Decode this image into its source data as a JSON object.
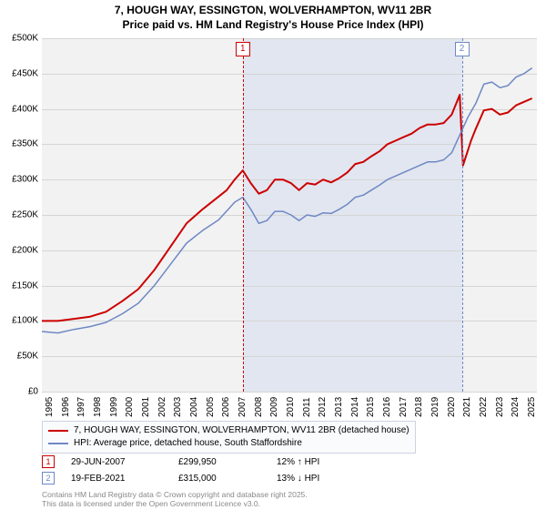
{
  "title": {
    "line1": "7, HOUGH WAY, ESSINGTON, WOLVERHAMPTON, WV11 2BR",
    "line2": "Price paid vs. HM Land Registry's House Price Index (HPI)",
    "fontsize": 12
  },
  "chart": {
    "type": "line",
    "background_color": "#f2f2f2",
    "shade_color": "#e2e6f0",
    "grid_color": "#d5d5d5",
    "x_start_year": 1995,
    "x_end_year": 2025.8,
    "x_ticks": [
      1995,
      1996,
      1997,
      1998,
      1999,
      2000,
      2001,
      2002,
      2003,
      2004,
      2005,
      2006,
      2007,
      2008,
      2009,
      2010,
      2011,
      2012,
      2013,
      2014,
      2015,
      2016,
      2017,
      2018,
      2019,
      2020,
      2021,
      2022,
      2023,
      2024,
      2025
    ],
    "y_min": 0,
    "y_max": 500000,
    "y_ticks": [
      0,
      50000,
      100000,
      150000,
      200000,
      250000,
      300000,
      350000,
      400000,
      450000,
      500000
    ],
    "y_tick_labels": [
      "£0",
      "£50K",
      "£100K",
      "£150K",
      "£200K",
      "£250K",
      "£300K",
      "£350K",
      "£400K",
      "£450K",
      "£500K"
    ],
    "series": [
      {
        "name": "price_paid",
        "color": "#cc0000",
        "width": 2,
        "points": [
          [
            1995,
            100000
          ],
          [
            1996,
            100000
          ],
          [
            1997,
            103000
          ],
          [
            1998,
            106000
          ],
          [
            1999,
            113000
          ],
          [
            2000,
            128000
          ],
          [
            2001,
            145000
          ],
          [
            2002,
            172000
          ],
          [
            2003,
            205000
          ],
          [
            2004,
            238000
          ],
          [
            2005,
            258000
          ],
          [
            2006,
            276000
          ],
          [
            2006.5,
            285000
          ],
          [
            2007,
            300000
          ],
          [
            2007.5,
            313000
          ],
          [
            2008,
            295000
          ],
          [
            2008.5,
            280000
          ],
          [
            2009,
            285000
          ],
          [
            2009.5,
            300000
          ],
          [
            2010,
            300000
          ],
          [
            2010.5,
            295000
          ],
          [
            2011,
            285000
          ],
          [
            2011.5,
            295000
          ],
          [
            2012,
            293000
          ],
          [
            2012.5,
            300000
          ],
          [
            2013,
            296000
          ],
          [
            2013.5,
            302000
          ],
          [
            2014,
            310000
          ],
          [
            2014.5,
            322000
          ],
          [
            2015,
            325000
          ],
          [
            2015.5,
            333000
          ],
          [
            2016,
            340000
          ],
          [
            2016.5,
            350000
          ],
          [
            2017,
            355000
          ],
          [
            2017.5,
            360000
          ],
          [
            2018,
            365000
          ],
          [
            2018.5,
            373000
          ],
          [
            2019,
            378000
          ],
          [
            2019.5,
            378000
          ],
          [
            2020,
            380000
          ],
          [
            2020.5,
            392000
          ],
          [
            2021,
            420000
          ],
          [
            2021.2,
            320000
          ],
          [
            2021.7,
            355000
          ],
          [
            2022,
            372000
          ],
          [
            2022.5,
            398000
          ],
          [
            2023,
            400000
          ],
          [
            2023.5,
            392000
          ],
          [
            2024,
            395000
          ],
          [
            2024.5,
            405000
          ],
          [
            2025,
            410000
          ],
          [
            2025.5,
            415000
          ]
        ]
      },
      {
        "name": "hpi",
        "color": "#6e88c4",
        "width": 1.5,
        "points": [
          [
            1995,
            85000
          ],
          [
            1996,
            83000
          ],
          [
            1997,
            88000
          ],
          [
            1998,
            92000
          ],
          [
            1999,
            98000
          ],
          [
            2000,
            110000
          ],
          [
            2001,
            125000
          ],
          [
            2002,
            150000
          ],
          [
            2003,
            180000
          ],
          [
            2004,
            210000
          ],
          [
            2005,
            228000
          ],
          [
            2006,
            243000
          ],
          [
            2007,
            268000
          ],
          [
            2007.5,
            275000
          ],
          [
            2008,
            258000
          ],
          [
            2008.5,
            238000
          ],
          [
            2009,
            242000
          ],
          [
            2009.5,
            255000
          ],
          [
            2010,
            255000
          ],
          [
            2010.5,
            250000
          ],
          [
            2011,
            242000
          ],
          [
            2011.5,
            250000
          ],
          [
            2012,
            248000
          ],
          [
            2012.5,
            253000
          ],
          [
            2013,
            252000
          ],
          [
            2013.5,
            258000
          ],
          [
            2014,
            265000
          ],
          [
            2014.5,
            275000
          ],
          [
            2015,
            278000
          ],
          [
            2015.5,
            285000
          ],
          [
            2016,
            292000
          ],
          [
            2016.5,
            300000
          ],
          [
            2017,
            305000
          ],
          [
            2017.5,
            310000
          ],
          [
            2018,
            315000
          ],
          [
            2018.5,
            320000
          ],
          [
            2019,
            325000
          ],
          [
            2019.5,
            325000
          ],
          [
            2020,
            328000
          ],
          [
            2020.5,
            338000
          ],
          [
            2021,
            363000
          ],
          [
            2021.5,
            388000
          ],
          [
            2022,
            408000
          ],
          [
            2022.5,
            435000
          ],
          [
            2023,
            438000
          ],
          [
            2023.5,
            430000
          ],
          [
            2024,
            433000
          ],
          [
            2024.5,
            445000
          ],
          [
            2025,
            450000
          ],
          [
            2025.5,
            458000
          ]
        ]
      }
    ],
    "markers": [
      {
        "id": "1",
        "year": 2007.5,
        "color": "#cc0000"
      },
      {
        "id": "2",
        "year": 2021.13,
        "color": "#6e88c4"
      }
    ]
  },
  "legend": {
    "items": [
      {
        "color": "#cc0000",
        "width": 2,
        "label": "7, HOUGH WAY, ESSINGTON, WOLVERHAMPTON, WV11 2BR (detached house)"
      },
      {
        "color": "#6e88c4",
        "width": 1.5,
        "label": "HPI: Average price, detached house, South Staffordshire"
      }
    ]
  },
  "transactions": [
    {
      "id": "1",
      "color": "#cc0000",
      "date": "29-JUN-2007",
      "price": "£299,950",
      "hpi": "12% ↑ HPI"
    },
    {
      "id": "2",
      "color": "#6e88c4",
      "date": "19-FEB-2021",
      "price": "£315,000",
      "hpi": "13% ↓ HPI"
    }
  ],
  "footnote": {
    "line1": "Contains HM Land Registry data © Crown copyright and database right 2025.",
    "line2": "This data is licensed under the Open Government Licence v3.0."
  }
}
